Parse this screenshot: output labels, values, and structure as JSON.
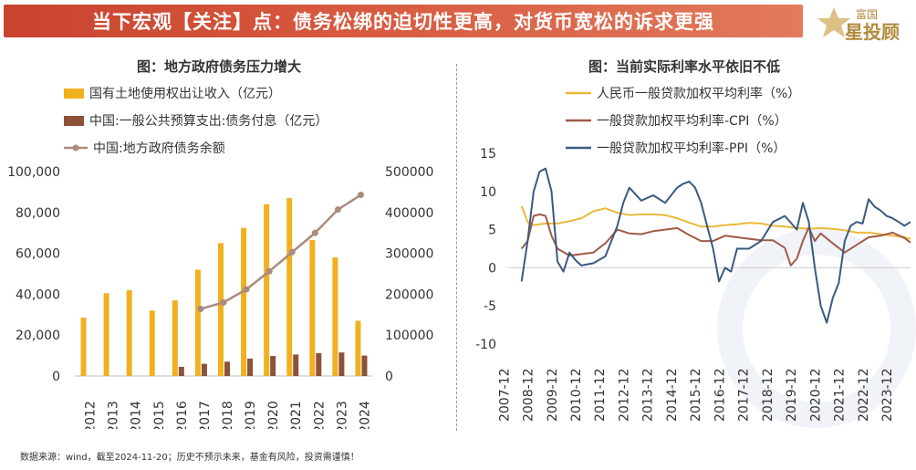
{
  "banner": {
    "title": "当下宏观【关注】点：债务松绑的迫切性更高，对货币宽松的诉求更强"
  },
  "logo": {
    "top": "富国",
    "main": "星投顾"
  },
  "footer": {
    "text": "数据来源：wind，截至2024-11-20；历史不预示未来，基金有风险，投资需谨慎！"
  },
  "colors": {
    "gold": "#f0b020",
    "brown": "#8b5238",
    "line_left": "#a98a7c",
    "line_gold": "#e9b93a",
    "line_cpi": "#a05a48",
    "line_ppi": "#3a5a80"
  },
  "chart_data": [
    {
      "type": "bar",
      "title": "图：地方政府债务压力增大",
      "categories": [
        "2012",
        "2013",
        "2014",
        "2015",
        "2016",
        "2017",
        "2018",
        "2019",
        "2020",
        "2021",
        "2022",
        "2023",
        "2024"
      ],
      "series": [
        {
          "name": "国有土地使用权出让收入（亿元）",
          "axis": "left",
          "kind": "bar",
          "color": "#f0b020",
          "values": [
            28500,
            40500,
            42000,
            32000,
            37000,
            52000,
            65000,
            72500,
            84000,
            87000,
            66500,
            58000,
            27000
          ]
        },
        {
          "name": "中国:一般公共预算支出:债务付息（亿元）",
          "axis": "left",
          "kind": "bar",
          "color": "#8b5238",
          "values": [
            null,
            null,
            null,
            null,
            4500,
            6000,
            7000,
            8500,
            9800,
            10500,
            11200,
            11500,
            10000
          ]
        },
        {
          "name": "中国:地方政府债务余额",
          "axis": "right",
          "kind": "line",
          "color": "#a98a7c",
          "values": [
            null,
            null,
            null,
            null,
            null,
            164000,
            180000,
            212000,
            256000,
            303000,
            350000,
            407000,
            443000
          ]
        }
      ],
      "y_left": {
        "ticks": [
          "100,000",
          "80,000",
          "60,000",
          "40,000",
          "20,000",
          "0"
        ],
        "lim": [
          0,
          100000
        ]
      },
      "y_right": {
        "ticks": [
          "500000",
          "400000",
          "300000",
          "200000",
          "100000",
          "0"
        ],
        "lim": [
          0,
          500000
        ]
      }
    },
    {
      "type": "line",
      "title": "图：当前实际利率水平依旧不低",
      "x_ticks": [
        "2007-12",
        "2008-12",
        "2009-12",
        "2010-12",
        "2011-12",
        "2012-12",
        "2013-12",
        "2014-12",
        "2015-12",
        "2016-12",
        "2017-12",
        "2018-12",
        "2019-12",
        "2020-12",
        "2021-12",
        "2022-12",
        "2023-12"
      ],
      "x_range": [
        2007.9,
        2024.75
      ],
      "ylim": [
        -10,
        15
      ],
      "y_ticks": [
        "15",
        "10",
        "5",
        "0",
        "-5",
        "-10"
      ],
      "series": [
        {
          "name": "人民币一般贷款加权平均利率（%）",
          "color": "#e9b93a",
          "x": [
            2008.5,
            2008.75,
            2009.0,
            2009.5,
            2010.0,
            2010.5,
            2011.0,
            2011.5,
            2012.0,
            2012.5,
            2013.0,
            2013.5,
            2014.0,
            2014.5,
            2015.0,
            2015.5,
            2016.0,
            2016.5,
            2017.0,
            2017.5,
            2018.0,
            2018.5,
            2019.0,
            2019.5,
            2020.0,
            2020.5,
            2021.0,
            2021.5,
            2022.0,
            2022.5,
            2023.0,
            2023.5,
            2024.0,
            2024.5,
            2024.75
          ],
          "y": [
            8.1,
            6.0,
            5.6,
            5.8,
            5.8,
            6.1,
            6.5,
            7.4,
            7.8,
            7.2,
            6.9,
            7.0,
            7.0,
            6.9,
            6.5,
            5.9,
            5.4,
            5.4,
            5.6,
            5.7,
            5.9,
            5.8,
            5.5,
            5.4,
            5.2,
            5.1,
            5.2,
            5.1,
            4.9,
            4.6,
            4.6,
            4.4,
            4.2,
            4.0,
            3.8
          ]
        },
        {
          "name": "一般贷款加权平均利率-CPI（%）",
          "color": "#a05a48",
          "x": [
            2008.5,
            2008.75,
            2009.0,
            2009.25,
            2009.5,
            2009.75,
            2010.0,
            2010.5,
            2011.0,
            2011.5,
            2012.0,
            2012.5,
            2013.0,
            2013.5,
            2014.0,
            2014.5,
            2015.0,
            2015.5,
            2016.0,
            2016.5,
            2017.0,
            2017.5,
            2018.0,
            2018.5,
            2019.0,
            2019.5,
            2019.75,
            2020.0,
            2020.25,
            2020.5,
            2020.75,
            2021.0,
            2021.5,
            2022.0,
            2022.5,
            2023.0,
            2023.5,
            2024.0,
            2024.5,
            2024.75
          ],
          "y": [
            2.5,
            3.5,
            6.8,
            7.0,
            6.8,
            4.2,
            2.5,
            1.6,
            1.8,
            2.0,
            3.2,
            5.0,
            4.5,
            4.4,
            4.8,
            5.0,
            5.2,
            4.3,
            3.5,
            3.5,
            4.2,
            4.0,
            3.8,
            3.6,
            3.6,
            2.6,
            0.3,
            1.2,
            3.5,
            5.3,
            3.5,
            4.5,
            3.2,
            2.0,
            3.0,
            4.0,
            4.2,
            4.6,
            3.9,
            3.3
          ]
        },
        {
          "name": "一般贷款加权平均利率-PPI（%）",
          "color": "#3a5a80",
          "x": [
            2008.5,
            2008.75,
            2009.0,
            2009.25,
            2009.5,
            2009.75,
            2010.0,
            2010.25,
            2010.5,
            2010.75,
            2011.0,
            2011.5,
            2012.0,
            2012.25,
            2012.5,
            2012.75,
            2013.0,
            2013.5,
            2014.0,
            2014.5,
            2015.0,
            2015.25,
            2015.5,
            2015.75,
            2016.0,
            2016.25,
            2016.5,
            2016.75,
            2017.0,
            2017.25,
            2017.5,
            2018.0,
            2018.5,
            2019.0,
            2019.5,
            2020.0,
            2020.25,
            2020.5,
            2020.75,
            2021.0,
            2021.25,
            2021.5,
            2021.75,
            2022.0,
            2022.25,
            2022.5,
            2022.75,
            2023.0,
            2023.25,
            2023.5,
            2023.75,
            2024.0,
            2024.25,
            2024.5,
            2024.75
          ],
          "y": [
            -1.8,
            3.5,
            10.0,
            12.6,
            13.0,
            10.0,
            0.8,
            -0.5,
            2.0,
            1.0,
            0.3,
            0.6,
            1.5,
            3.5,
            5.5,
            8.5,
            10.5,
            8.8,
            9.5,
            8.5,
            10.5,
            11.0,
            11.3,
            10.5,
            8.5,
            5.5,
            2.5,
            -1.8,
            0.0,
            -0.5,
            2.5,
            2.5,
            3.5,
            6.0,
            6.8,
            5.0,
            8.5,
            6.0,
            0.0,
            -5.0,
            -7.2,
            -4.0,
            -2.0,
            3.5,
            5.5,
            6.0,
            5.8,
            9.0,
            8.0,
            7.5,
            6.8,
            6.5,
            6.0,
            5.5,
            6.0
          ]
        }
      ]
    }
  ]
}
